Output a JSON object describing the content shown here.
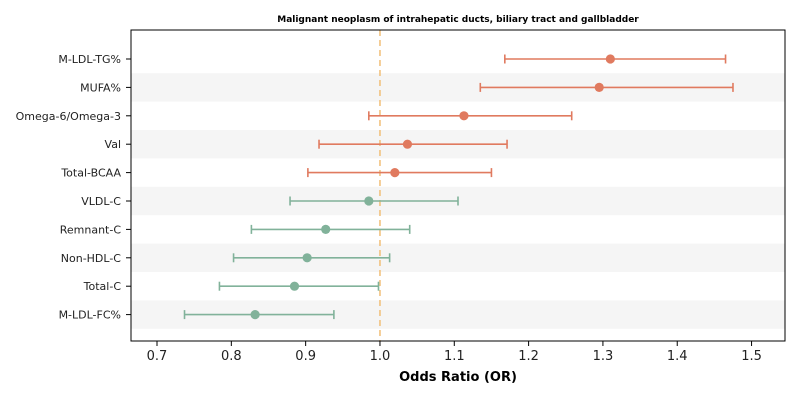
{
  "chart_data": {
    "type": "forest",
    "title": "Malignant neoplasm of intrahepatic ducts, biliary tract and gallbladder",
    "xlabel": "Odds Ratio (OR)",
    "xlim": [
      0.665,
      1.545
    ],
    "xticks": [
      0.7,
      0.8,
      0.9,
      1.0,
      1.1,
      1.2,
      1.3,
      1.4,
      1.5
    ],
    "xtick_labels": [
      "0.7",
      "0.8",
      "0.9",
      "1.0",
      "1.1",
      "1.2",
      "1.3",
      "1.4",
      "1.5"
    ],
    "reference_line": 1.0,
    "colors": {
      "positive": "#e07a5f",
      "negative": "#81b29a",
      "reference": "#f2c27f",
      "band": "#f5f5f5"
    },
    "rows": [
      {
        "label": "M-LDL-TG%",
        "or": 1.31,
        "lo": 1.168,
        "hi": 1.465,
        "group": "positive"
      },
      {
        "label": "MUFA%",
        "or": 1.295,
        "lo": 1.135,
        "hi": 1.475,
        "group": "positive"
      },
      {
        "label": "Omega-6/Omega-3",
        "or": 1.113,
        "lo": 0.985,
        "hi": 1.258,
        "group": "positive"
      },
      {
        "label": "Val",
        "or": 1.037,
        "lo": 0.918,
        "hi": 1.171,
        "group": "positive"
      },
      {
        "label": "Total-BCAA",
        "or": 1.02,
        "lo": 0.903,
        "hi": 1.15,
        "group": "positive"
      },
      {
        "label": "VLDL-C",
        "or": 0.985,
        "lo": 0.879,
        "hi": 1.105,
        "group": "negative"
      },
      {
        "label": "Remnant-C",
        "or": 0.927,
        "lo": 0.827,
        "hi": 1.04,
        "group": "negative"
      },
      {
        "label": "Non-HDL-C",
        "or": 0.902,
        "lo": 0.803,
        "hi": 1.013,
        "group": "negative"
      },
      {
        "label": "Total-C",
        "or": 0.885,
        "lo": 0.784,
        "hi": 0.998,
        "group": "negative"
      },
      {
        "label": "M-LDL-FC%",
        "or": 0.832,
        "lo": 0.737,
        "hi": 0.938,
        "group": "negative"
      }
    ]
  }
}
